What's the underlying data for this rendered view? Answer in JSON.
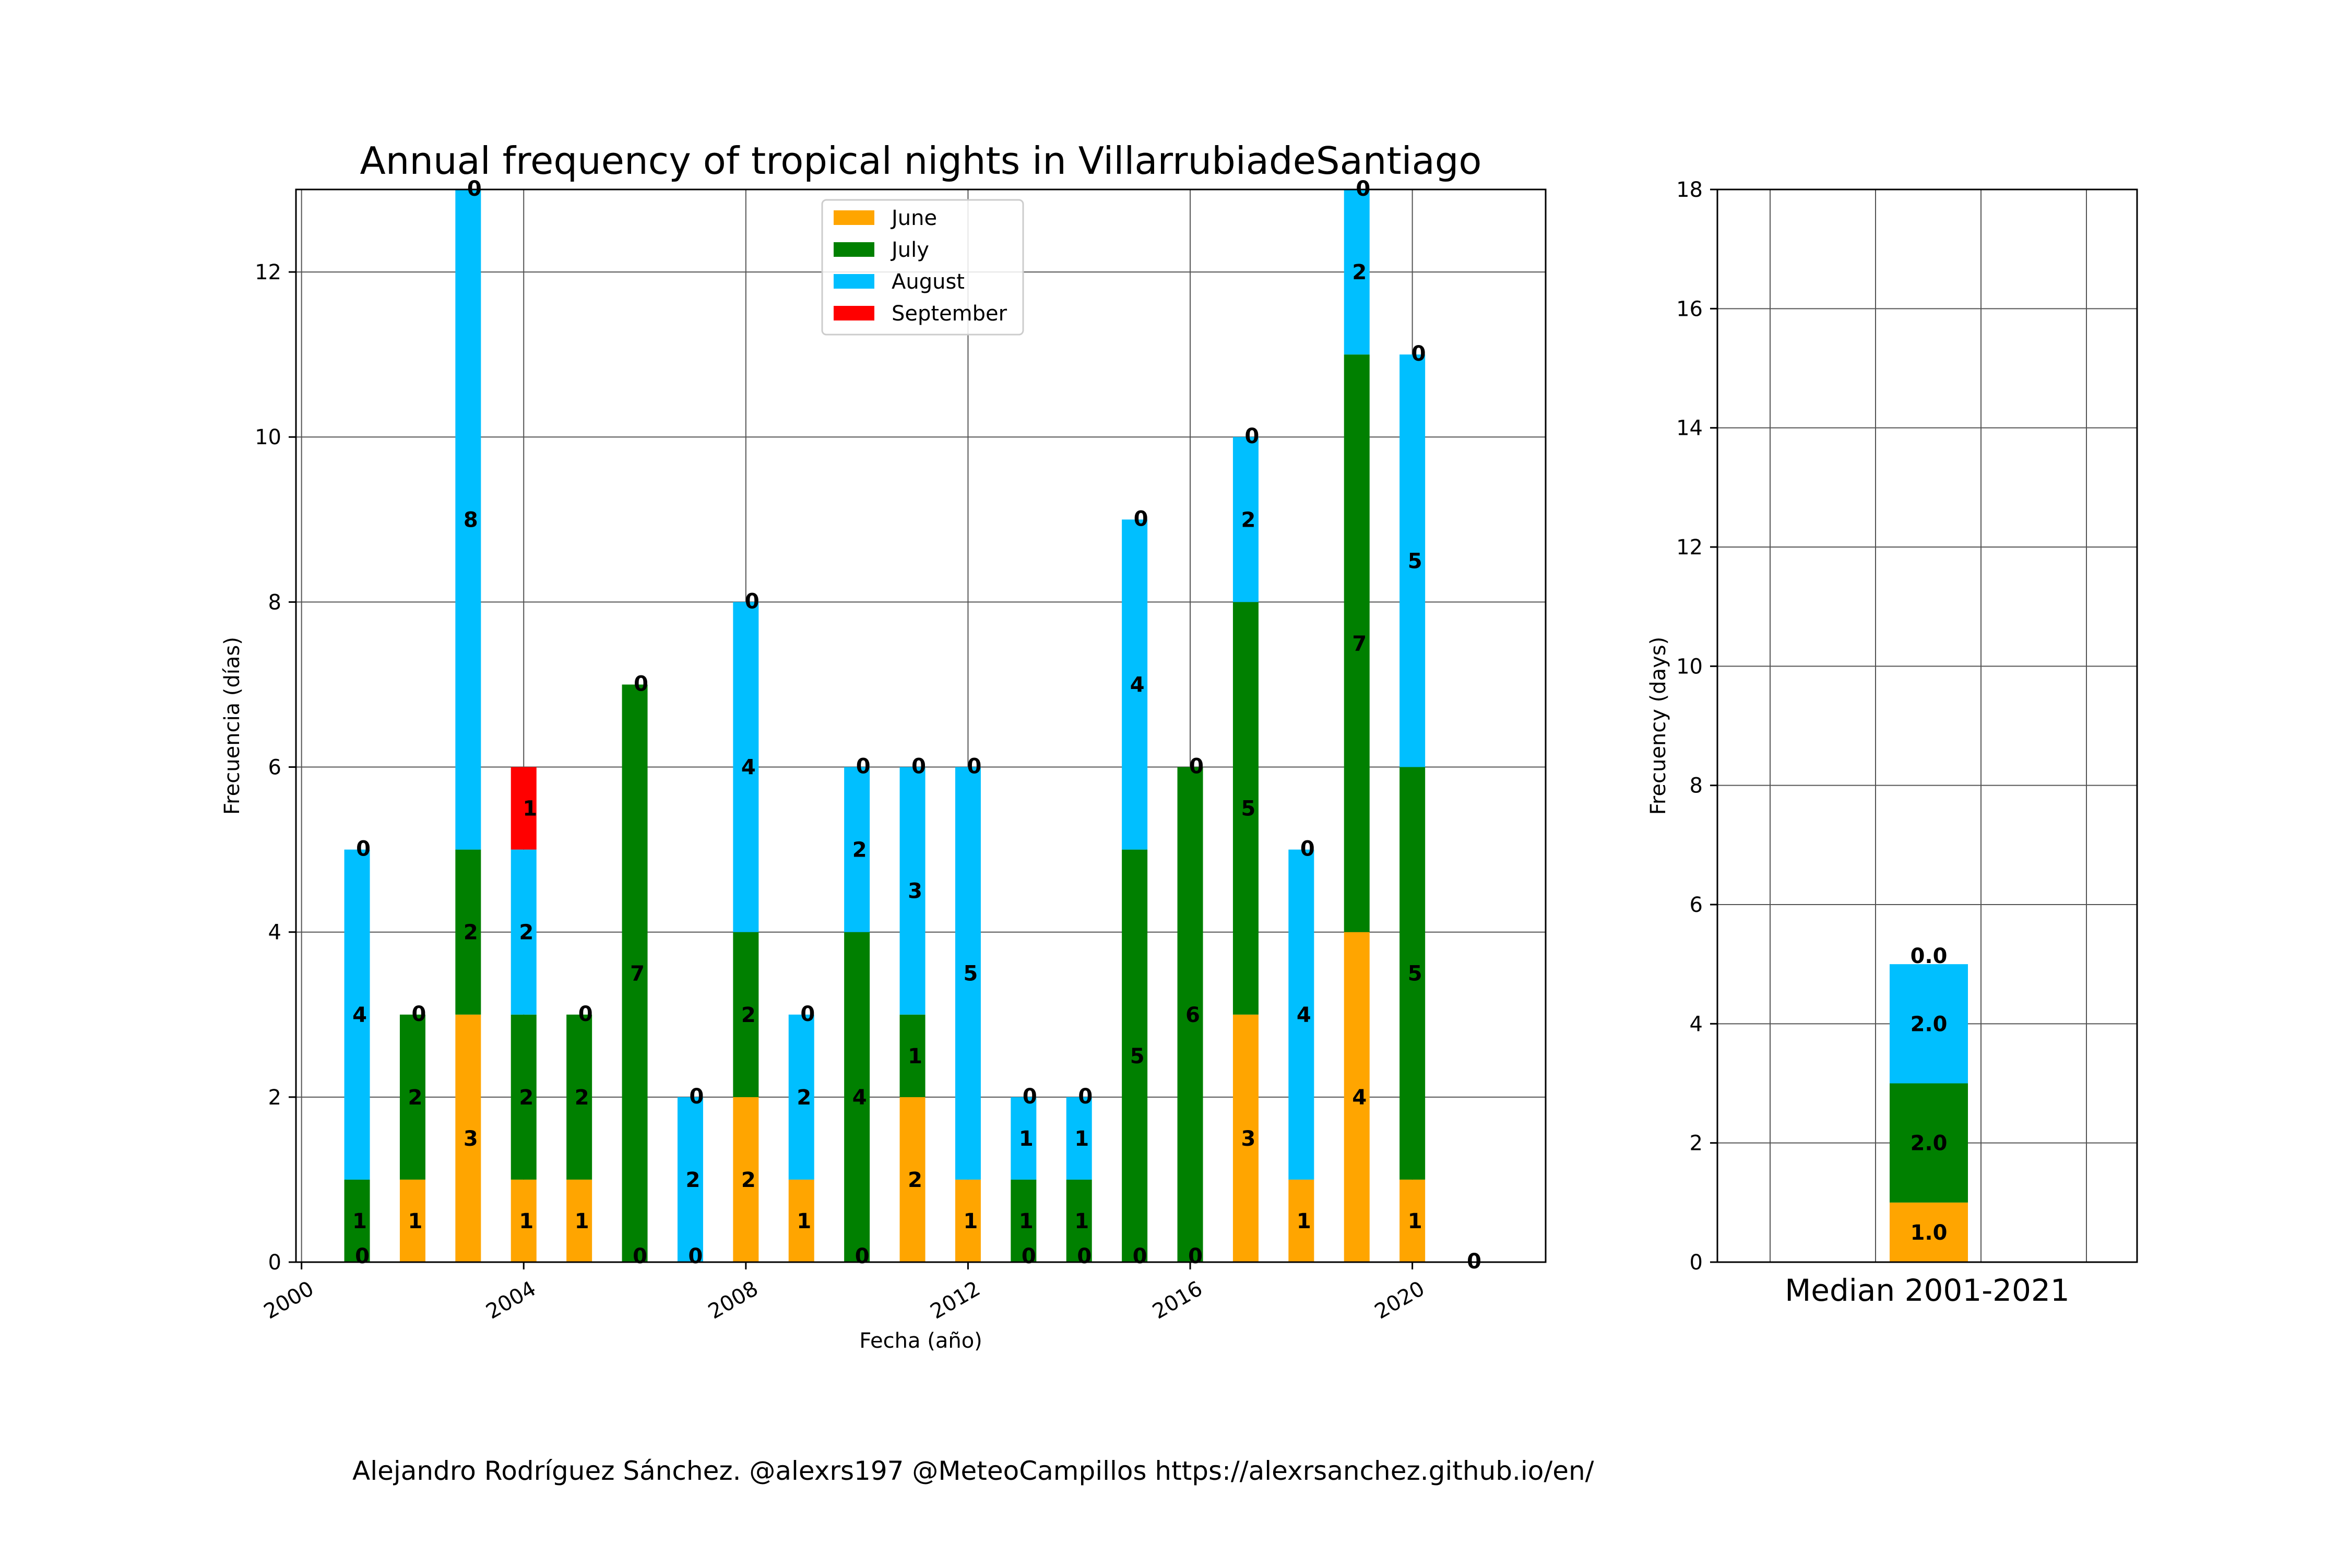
{
  "colors": {
    "June": "#ffa500",
    "July": "#008000",
    "August": "#00bfff",
    "September": "#ff0000",
    "grid": "#555555",
    "axis": "#000000"
  },
  "chart_data": [
    {
      "type": "bar",
      "stacked": true,
      "title": "Annual frequency of tropical nights in VillarrubiadeSantiago",
      "xlabel": "Fecha (año)",
      "ylabel": "Frecuencia (días)",
      "xlim": [
        1999.9,
        2022.4
      ],
      "ylim": [
        0,
        13
      ],
      "xticks": [
        2000,
        2004,
        2008,
        2012,
        2016,
        2020
      ],
      "yticks": [
        0,
        2,
        4,
        6,
        8,
        10,
        12
      ],
      "grid": true,
      "legend_position": "top-center",
      "categories": [
        2001,
        2002,
        2003,
        2004,
        2005,
        2006,
        2007,
        2008,
        2009,
        2010,
        2011,
        2012,
        2013,
        2014,
        2015,
        2016,
        2017,
        2018,
        2019,
        2020,
        2021
      ],
      "series": [
        {
          "name": "June",
          "values": [
            0,
            1,
            3,
            1,
            1,
            0,
            0,
            2,
            1,
            0,
            2,
            1,
            0,
            0,
            0,
            0,
            3,
            1,
            4,
            1,
            0
          ]
        },
        {
          "name": "July",
          "values": [
            1,
            2,
            2,
            2,
            2,
            7,
            0,
            2,
            0,
            4,
            1,
            0,
            1,
            1,
            5,
            6,
            5,
            0,
            7,
            5,
            0
          ]
        },
        {
          "name": "August",
          "values": [
            4,
            0,
            8,
            2,
            0,
            0,
            2,
            4,
            2,
            2,
            3,
            5,
            1,
            1,
            4,
            0,
            2,
            4,
            2,
            5,
            0
          ]
        },
        {
          "name": "September",
          "values": [
            0,
            0,
            0,
            1,
            0,
            0,
            0,
            0,
            0,
            0,
            0,
            0,
            0,
            0,
            0,
            0,
            0,
            0,
            0,
            0,
            0
          ]
        }
      ],
      "data_labels": {
        "June": [
          "0",
          "1",
          "3",
          "1",
          "1",
          "0",
          "0",
          "2",
          "1",
          "0",
          "2",
          "1",
          "0",
          "0",
          "0",
          "0",
          "3",
          "1",
          "4",
          "1",
          "0"
        ],
        "July": [
          "1",
          "2",
          "2",
          "2",
          "2",
          "7",
          "0",
          "2",
          "0",
          "4",
          "1",
          "0",
          "1",
          "1",
          "5",
          "6",
          "5",
          "0",
          "7",
          "5",
          "0"
        ],
        "August": [
          "4",
          "0",
          "8",
          "2",
          "0",
          "0",
          "2",
          "4",
          "2",
          "2",
          "3",
          "5",
          "1",
          "1",
          "4",
          "0",
          "2",
          "4",
          "2",
          "5",
          "0"
        ],
        "September": [
          "0",
          "0",
          "0",
          "1",
          "0",
          "0",
          "0",
          "0",
          "0",
          "0",
          "0",
          "0",
          "0",
          "0",
          "0",
          "0",
          "0",
          "0",
          "0",
          "0",
          "0"
        ]
      },
      "data_label_display": {
        "June": [
          false,
          true,
          true,
          true,
          true,
          false,
          false,
          true,
          true,
          false,
          true,
          true,
          false,
          false,
          false,
          false,
          true,
          true,
          true,
          true,
          false
        ],
        "July": [
          true,
          true,
          true,
          true,
          true,
          true,
          false,
          true,
          false,
          true,
          true,
          false,
          true,
          true,
          true,
          true,
          true,
          false,
          true,
          true,
          false
        ],
        "August": [
          true,
          false,
          true,
          true,
          false,
          false,
          true,
          true,
          true,
          true,
          true,
          true,
          true,
          true,
          true,
          false,
          true,
          true,
          true,
          true,
          false
        ]
      },
      "bottom_labels": [
        "0",
        "",
        "",
        "",
        "",
        "0",
        "0",
        "",
        "",
        "0",
        "",
        "",
        "0",
        "0",
        "0",
        "0",
        "",
        "",
        "",
        "",
        ""
      ],
      "top_labels": [
        "0",
        "0",
        "0",
        "1",
        "0",
        "0",
        "0",
        "0",
        "0",
        "0",
        "0",
        "0",
        "0",
        "0",
        "0",
        "0",
        "0",
        "0",
        "0",
        "0",
        "0"
      ]
    },
    {
      "type": "bar",
      "stacked": true,
      "xlabel": "Median 2001-2021",
      "ylabel": "Frecuency (days)",
      "ylim": [
        0,
        18
      ],
      "yticks": [
        0,
        2,
        4,
        6,
        8,
        10,
        12,
        14,
        16,
        18
      ],
      "grid": true,
      "series": [
        {
          "name": "June",
          "value": 1.0
        },
        {
          "name": "July",
          "value": 2.0
        },
        {
          "name": "August",
          "value": 2.0
        },
        {
          "name": "September",
          "value": 0.0
        }
      ],
      "data_labels": [
        "1.0",
        "2.0",
        "2.0",
        "0.0"
      ]
    }
  ],
  "footer": "Alejandro Rodríguez Sánchez. @alexrs197 @MeteoCampillos   https://alexrsanchez.github.io/en/"
}
